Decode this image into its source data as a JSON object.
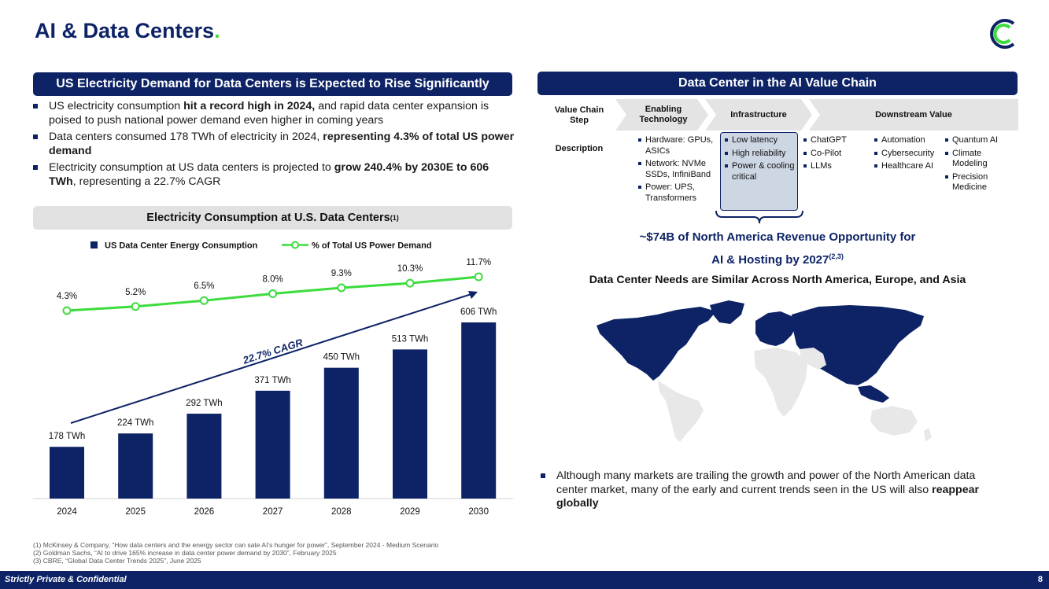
{
  "page": {
    "title": "AI & Data Centers",
    "title_dot": ".",
    "page_number": "8",
    "confidential": "Strictly Private & Confidential"
  },
  "left": {
    "banner": "US Electricity Demand for Data Centers is Expected to Rise Significantly",
    "bullets": [
      {
        "a": "US electricity consumption ",
        "b": "hit a record high in 2024,",
        "c": " and rapid data center expansion is poised to push national power demand even higher in coming years"
      },
      {
        "a": "Data centers consumed 178 TWh of electricity in 2024, ",
        "b": "representing 4.3% of total US power demand",
        "c": ""
      },
      {
        "a": "Electricity consumption at US data centers is projected to ",
        "b": "grow 240.4% by 2030E to 606 TWh",
        "c": ", representing a 22.7% CAGR"
      }
    ],
    "chart_title": "Electricity Consumption at U.S. Data Centers",
    "chart_title_sup": "(1)"
  },
  "chart_data": {
    "type": "bar",
    "categories": [
      "2024",
      "2025",
      "2026",
      "2027",
      "2028",
      "2029",
      "2030"
    ],
    "series": [
      {
        "name": "US Data Center Energy Consumption",
        "type": "bar",
        "values": [
          178,
          224,
          292,
          371,
          450,
          513,
          606
        ],
        "labels": [
          "178 TWh",
          "224 TWh",
          "292 TWh",
          "371 TWh",
          "450 TWh",
          "513 TWh",
          "606 TWh"
        ],
        "color": "#0d2366"
      },
      {
        "name": "% of Total US Power Demand",
        "type": "line",
        "values": [
          4.3,
          5.2,
          6.5,
          8.0,
          9.3,
          10.3,
          11.7
        ],
        "labels": [
          "4.3%",
          "5.2%",
          "6.5%",
          "8.0%",
          "9.3%",
          "10.3%",
          "11.7%"
        ],
        "color": "#3ddc3d"
      }
    ],
    "annotation": "22.7% CAGR",
    "legend_position": "top"
  },
  "right": {
    "banner": "Data Center in the AI Value Chain",
    "value_chain_step": "Value Chain Step",
    "description": "Description",
    "stages": [
      "Enabling Technology",
      "Infrastructure",
      "Downstream Value"
    ],
    "enabling": [
      "Hardware: GPUs, ASICs",
      "Network: NVMe SSDs, InfiniBand",
      "Power: UPS, Transformers"
    ],
    "infrastructure": [
      "Low latency",
      "High reliability",
      "Power & cooling critical"
    ],
    "downstream_col1": [
      "ChatGPT",
      "Co-Pilot",
      "LLMs"
    ],
    "downstream_col2": [
      "Automation",
      "Cybersecurity",
      "Healthcare AI"
    ],
    "downstream_col3": [
      "Quantum AI",
      "Climate Modeling",
      "Precision Medicine"
    ],
    "revenue_line1": "~$74B of North America Revenue Opportunity for",
    "revenue_line2": "AI & Hosting by 2027",
    "revenue_sup": "(2,3)",
    "needs": "Data Center Needs are Similar Across North America, Europe, and Asia",
    "bullet_a": "Although many markets are trailing the growth and power of the North American data center market, many of the early and current trends seen in the US will also ",
    "bullet_b": "reappear globally"
  },
  "footnotes": [
    "(1)  McKinsey & Company, “How data centers and the energy sector can sate AI’s hunger for power”, September 2024 - Medium Scenario",
    "(2)  Goldman Sachs, “AI to drive 165% increase in data center power demand by 2030”, February 2025",
    "(3)  CBRE, “Global Data Center Trends 2025”, June 2025"
  ],
  "colors": {
    "navy": "#0d2366",
    "green": "#3ddc3d",
    "gray": "#e1e1e1",
    "map_light": "#e8e8e8"
  }
}
